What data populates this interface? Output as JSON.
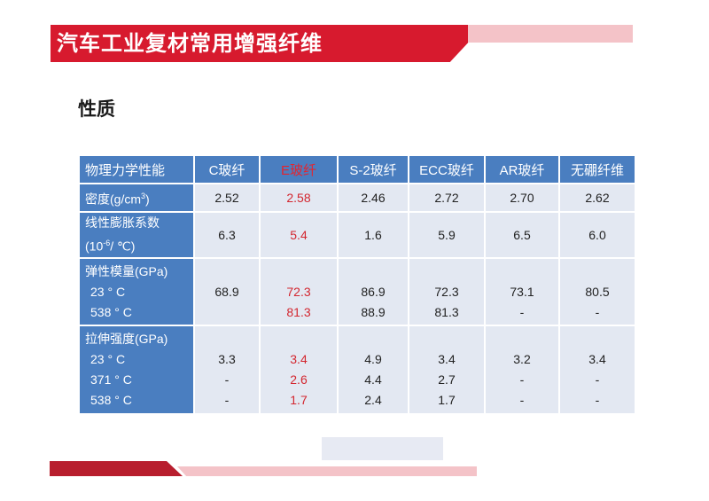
{
  "header": {
    "title": "汽车工业复材常用增强纤维"
  },
  "subtitle": "性质",
  "table": {
    "columns": [
      "物理力学性能",
      "C玻纤",
      "E玻纤",
      "S-2玻纤",
      "ECC玻纤",
      "AR玻纤",
      "无硼纤维"
    ],
    "rows": {
      "density": {
        "label": "密度(g/cm",
        "label_sup": "3",
        "label_close": ")",
        "values": [
          "2.52",
          "2.58",
          "2.46",
          "2.72",
          "2.70",
          "2.62"
        ]
      },
      "expansion": {
        "label_line1": "线性膨胀系数",
        "label_line2a": "(10",
        "label_sup": "-6",
        "label_line2b": "/ ℃)",
        "values": [
          "6.3",
          "5.4",
          "1.6",
          "5.9",
          "6.5",
          "6.0"
        ]
      },
      "modulus": {
        "label": "弹性模量(GPa)",
        "sub1": "23 ° C",
        "sub2": "538 ° C",
        "values_23": [
          "68.9",
          "72.3",
          "86.9",
          "72.3",
          "73.1",
          "80.5"
        ],
        "values_538": [
          "",
          "81.3",
          "88.9",
          "81.3",
          "-",
          "-"
        ]
      },
      "tensile": {
        "label": "拉伸强度(GPa)",
        "sub1": "23 ° C",
        "sub2": "371 ° C",
        "sub3": "538 ° C",
        "values_23": [
          "3.3",
          "3.4",
          "4.9",
          "3.4",
          "3.2",
          "3.4"
        ],
        "values_371": [
          "-",
          "2.6",
          "4.4",
          "2.7",
          "-",
          "-"
        ],
        "values_538": [
          "-",
          "1.7",
          "2.4",
          "1.7",
          "-",
          "-"
        ]
      }
    }
  },
  "colors": {
    "banner_red": "#d71a2e",
    "header_blue": "#4a7ec0",
    "cell_bg": "#e3e8f2",
    "highlight_red": "#d3262f"
  }
}
